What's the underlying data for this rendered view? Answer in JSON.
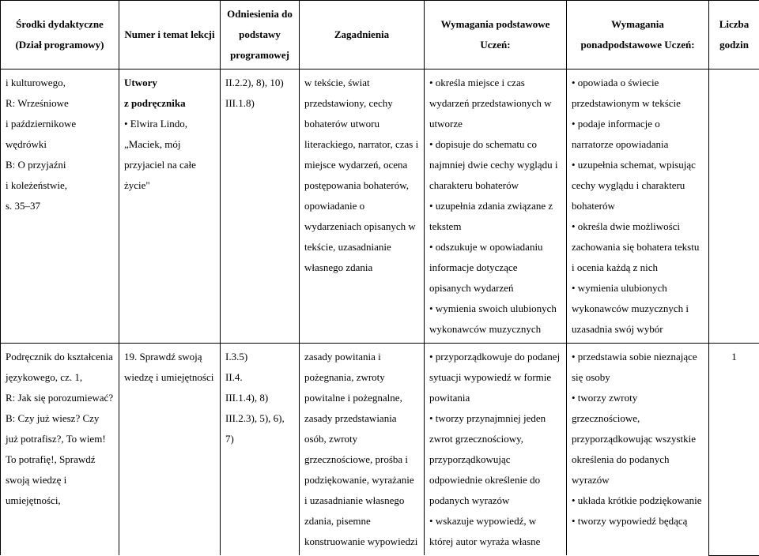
{
  "headers": {
    "col1": "Środki dydaktyczne (Dział programowy)",
    "col2": "Numer i temat lekcji",
    "col3": "Odniesienia do podstawy programowej",
    "col4": "Zagadnienia",
    "col5": "Wymagania podstawowe Uczeń:",
    "col6": "Wymagania ponadpodstawowe Uczeń:",
    "col7": "Liczba godzin"
  },
  "row1": {
    "col1": "i kulturowego,\nR: Wrześniowe\ni październikowe\nwędrówki\nB: O przyjaźni\ni koleżeństwie,\ns. 35–37",
    "col2": "Utwory z podręcznika\n• Elwira Lindo, „Maciek, mój przyjaciel na całe życie\"",
    "col3": "II.2.2), 8), 10)\nIII.1.8)",
    "col4": "w tekście, świat przedstawiony, cechy bohaterów utworu literackiego, narrator, czas i miejsce wydarzeń, ocena postępowania bohaterów, opowiadanie o wydarzeniach opisanych w tekście, uzasadnianie własnego zdania",
    "col5": "• określa miejsce i czas wydarzeń przedstawionych w utworze\n• dopisuje do schematu co najmniej dwie cechy wyglądu i charakteru bohaterów\n• uzupełnia zdania związane z tekstem\n• odszukuje w opowiadaniu informacje dotyczące opisanych wydarzeń\n• wymienia swoich ulubionych wykonawców muzycznych",
    "col6": "• opowiada o świecie przedstawionym w tekście\n• podaje informacje o narratorze opowiadania\n• uzupełnia schemat, wpisując cechy wyglądu i charakteru bohaterów\n• określa dwie możliwości zachowania się bohatera tekstu i ocenia każdą z nich\n• wymienia ulubionych wykonawców muzycznych i uzasadnia swój wybór",
    "col7": ""
  },
  "row2": {
    "col1": "Podręcznik do kształcenia językowego, cz. 1,\nR: Jak się porozumiewać?\nB: Czy już wiesz? Czy już potrafisz?, To wiem! To potrafię!, Sprawdź swoją wiedzę i umiejętności,",
    "col2": "19. Sprawdź swoją wiedzę i umiejętności",
    "col3": "I.3.5)\nII.4.\nIII.1.4), 8)\nIII.2.3), 5), 6), 7)",
    "col4": "zasady powitania i pożegnania, zwroty powitalne i pożegnalne, zasady przedstawiania osób, zwroty grzecznościowe, prośba i podziękowanie, wyrażanie i uzasadnianie własnego zdania, pisemne konstruowanie wypowiedzi",
    "col5": "• przyporządkowuje do podanej sytuacji wypowiedź w formie powitania\n• tworzy przynajmniej jeden zwrot grzecznościowy, przyporządkowując odpowiednie określenie do podanych wyrazów\n• wskazuje wypowiedź, w której autor wyraża własne",
    "col6": "• przedstawia sobie nieznające się osoby\n• tworzy zwroty grzecznościowe, przyporządkowując wszystkie określenia do podanych wyrazów\n• układa krótkie podziękowanie\n• tworzy wypowiedź będącą",
    "col7": "1"
  }
}
